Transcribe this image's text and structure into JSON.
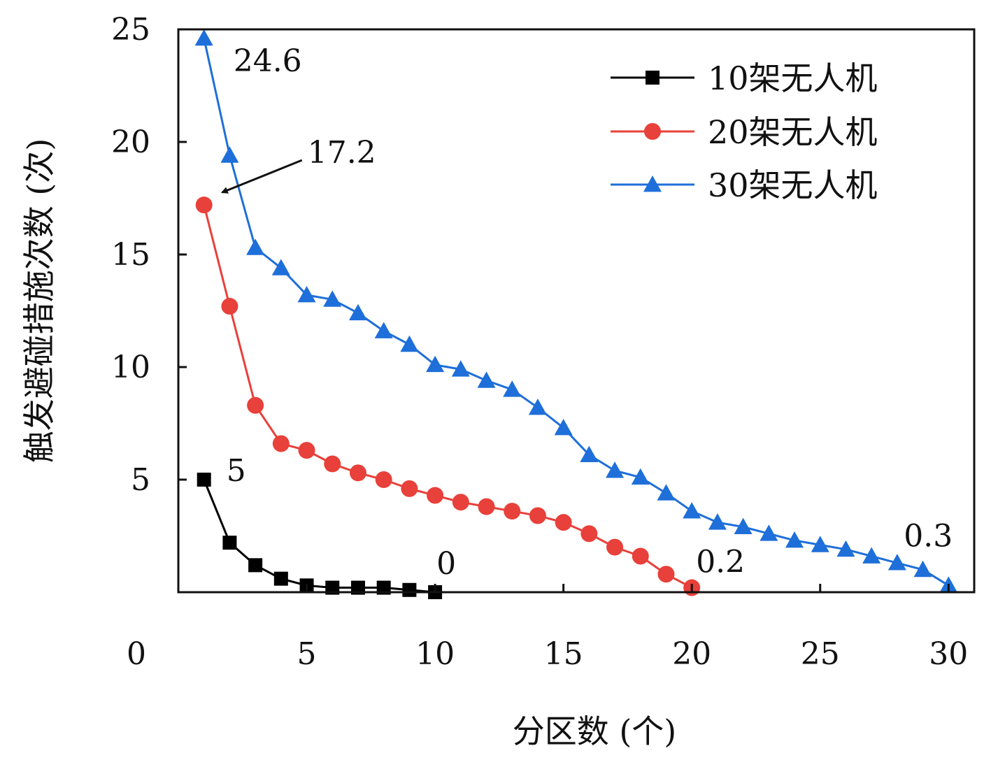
{
  "chart_data": {
    "type": "line",
    "title": "",
    "xlabel": "分区数 (个)",
    "ylabel": "触发避碰措施次数 (次)",
    "xlim": [
      0,
      31
    ],
    "ylim": [
      0,
      25
    ],
    "x_ticks": [
      "0",
      "5",
      "10",
      "15",
      "20",
      "25",
      "30"
    ],
    "y_ticks": [
      "5",
      "10",
      "15",
      "20",
      "25"
    ],
    "grid": false,
    "legend_position": "top-right",
    "series": [
      {
        "name": "10架无人机",
        "color": "#000000",
        "marker": "square",
        "x": [
          1,
          2,
          3,
          4,
          5,
          6,
          7,
          8,
          9,
          10
        ],
        "y": [
          5.0,
          2.2,
          1.2,
          0.6,
          0.3,
          0.2,
          0.2,
          0.2,
          0.1,
          0.0
        ]
      },
      {
        "name": "20架无人机",
        "color": "#e8403a",
        "marker": "circle",
        "x": [
          1,
          2,
          3,
          4,
          5,
          6,
          7,
          8,
          9,
          10,
          11,
          12,
          13,
          14,
          15,
          16,
          17,
          18,
          19,
          20
        ],
        "y": [
          17.2,
          12.7,
          8.3,
          6.6,
          6.3,
          5.7,
          5.3,
          5.0,
          4.6,
          4.3,
          4.0,
          3.8,
          3.6,
          3.4,
          3.1,
          2.6,
          2.0,
          1.6,
          0.8,
          0.2
        ]
      },
      {
        "name": "30架无人机",
        "color": "#1e6fd9",
        "marker": "triangle",
        "x": [
          1,
          2,
          3,
          4,
          5,
          6,
          7,
          8,
          9,
          10,
          11,
          12,
          13,
          14,
          15,
          16,
          17,
          18,
          19,
          20,
          21,
          22,
          23,
          24,
          25,
          26,
          27,
          28,
          29,
          30
        ],
        "y": [
          24.6,
          19.4,
          15.3,
          14.4,
          13.2,
          13.0,
          12.4,
          11.6,
          11.0,
          10.1,
          9.9,
          9.4,
          9.0,
          8.2,
          7.3,
          6.1,
          5.4,
          5.1,
          4.4,
          3.6,
          3.1,
          2.9,
          2.6,
          2.3,
          2.1,
          1.9,
          1.6,
          1.3,
          1.0,
          0.3
        ]
      }
    ],
    "annotations": [
      {
        "text": "24.6",
        "x": 1,
        "y": 24.6,
        "series": 2
      },
      {
        "text": "17.2",
        "x": 1,
        "y": 17.2,
        "series": 1,
        "arrow": true
      },
      {
        "text": "5",
        "x": 1,
        "y": 5.0,
        "series": 0
      },
      {
        "text": "0",
        "x": 10,
        "y": 0.0,
        "series": 0
      },
      {
        "text": "0.2",
        "x": 20,
        "y": 0.2,
        "series": 1
      },
      {
        "text": "0.3",
        "x": 30,
        "y": 0.3,
        "series": 2
      }
    ]
  }
}
